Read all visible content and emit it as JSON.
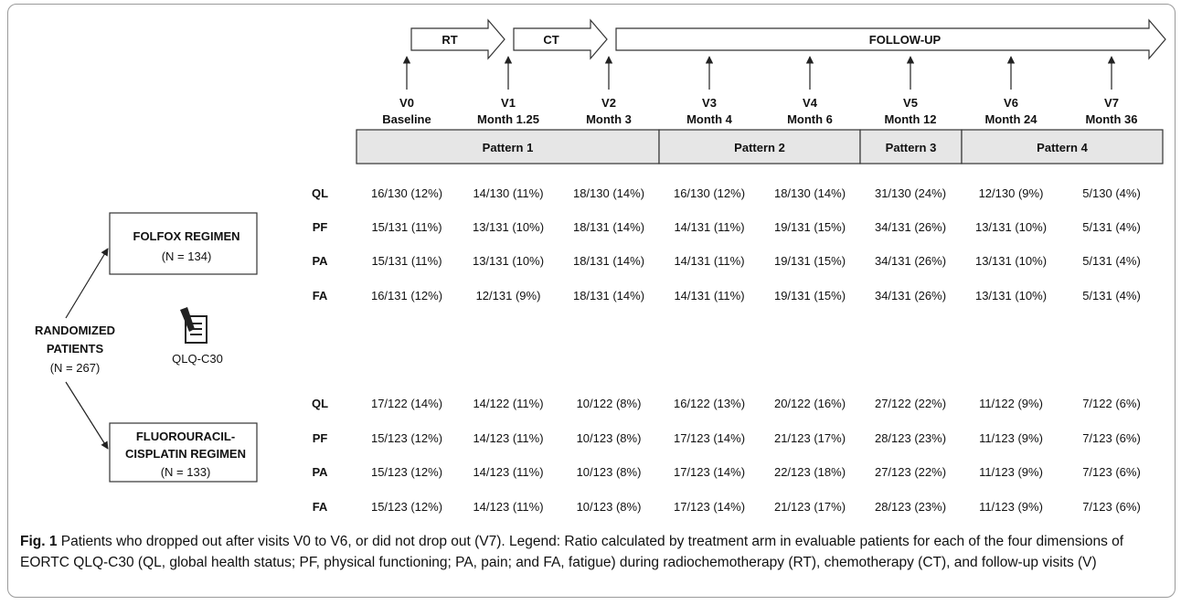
{
  "phases": [
    {
      "label": "RT"
    },
    {
      "label": "CT"
    },
    {
      "label": "FOLLOW-UP"
    }
  ],
  "visits": [
    {
      "code": "V0",
      "label": "Baseline"
    },
    {
      "code": "V1",
      "label": "Month 1.25"
    },
    {
      "code": "V2",
      "label": "Month 3"
    },
    {
      "code": "V3",
      "label": "Month 4"
    },
    {
      "code": "V4",
      "label": "Month 6"
    },
    {
      "code": "V5",
      "label": "Month 12"
    },
    {
      "code": "V6",
      "label": "Month 24"
    },
    {
      "code": "V7",
      "label": "Month 36"
    }
  ],
  "patterns": [
    "Pattern 1",
    "Pattern 2",
    "Pattern 3",
    "Pattern 4"
  ],
  "randomized": {
    "line1": "RANDOMIZED",
    "line2": "PATIENTS",
    "count": "(N = 267)"
  },
  "questionnaire": {
    "label": "QLQ-C30",
    "icon": "questionnaire-icon"
  },
  "arms": [
    {
      "title_lines": [
        "FOLFOX REGIMEN"
      ],
      "count": "(N = 134)",
      "rows": [
        {
          "dim": "QL",
          "values": [
            "16/130 (12%)",
            "14/130 (11%)",
            "18/130 (14%)",
            "16/130 (12%)",
            "18/130 (14%)",
            "31/130 (24%)",
            "12/130 (9%)",
            "5/130 (4%)"
          ]
        },
        {
          "dim": "PF",
          "values": [
            "15/131 (11%)",
            "13/131 (10%)",
            "18/131 (14%)",
            "14/131 (11%)",
            "19/131 (15%)",
            "34/131 (26%)",
            "13/131 (10%)",
            "5/131 (4%)"
          ]
        },
        {
          "dim": "PA",
          "values": [
            "15/131 (11%)",
            "13/131 (10%)",
            "18/131 (14%)",
            "14/131 (11%)",
            "19/131 (15%)",
            "34/131 (26%)",
            "13/131 (10%)",
            "5/131 (4%)"
          ]
        },
        {
          "dim": "FA",
          "values": [
            "16/131 (12%)",
            "12/131 (9%)",
            "18/131 (14%)",
            "14/131 (11%)",
            "19/131 (15%)",
            "34/131 (26%)",
            "13/131 (10%)",
            "5/131 (4%)"
          ]
        }
      ]
    },
    {
      "title_lines": [
        "FLUOROURACIL-",
        "CISPLATIN REGIMEN"
      ],
      "count": "(N = 133)",
      "rows": [
        {
          "dim": "QL",
          "values": [
            "17/122 (14%)",
            "14/122 (11%)",
            "10/122 (8%)",
            "16/122 (13%)",
            "20/122 (16%)",
            "27/122 (22%)",
            "11/122 (9%)",
            "7/122 (6%)"
          ]
        },
        {
          "dim": "PF",
          "values": [
            "15/123 (12%)",
            "14/123 (11%)",
            "10/123 (8%)",
            "17/123 (14%)",
            "21/123 (17%)",
            "28/123 (23%)",
            "11/123 (9%)",
            "7/123 (6%)"
          ]
        },
        {
          "dim": "PA",
          "values": [
            "15/123 (12%)",
            "14/123 (11%)",
            "10/123 (8%)",
            "17/123 (14%)",
            "22/123 (18%)",
            "27/123 (22%)",
            "11/123 (9%)",
            "7/123 (6%)"
          ]
        },
        {
          "dim": "FA",
          "values": [
            "15/123 (12%)",
            "14/123 (11%)",
            "10/123 (8%)",
            "17/123 (14%)",
            "21/123 (17%)",
            "28/123 (23%)",
            "11/123 (9%)",
            "7/123 (6%)"
          ]
        }
      ]
    }
  ],
  "caption": {
    "label": "Fig. 1",
    "text": "Patients who dropped out after visits V0 to V6, or did not drop out (V7). Legend: Ratio calculated by treatment arm in evaluable patients for each of the four dimensions of EORTC QLQ-C30 (QL, global health status; PF, physical functioning; PA, pain; and FA, fatigue) during radiochemotherapy (RT), chemotherapy (CT), and follow-up visits (V)"
  }
}
